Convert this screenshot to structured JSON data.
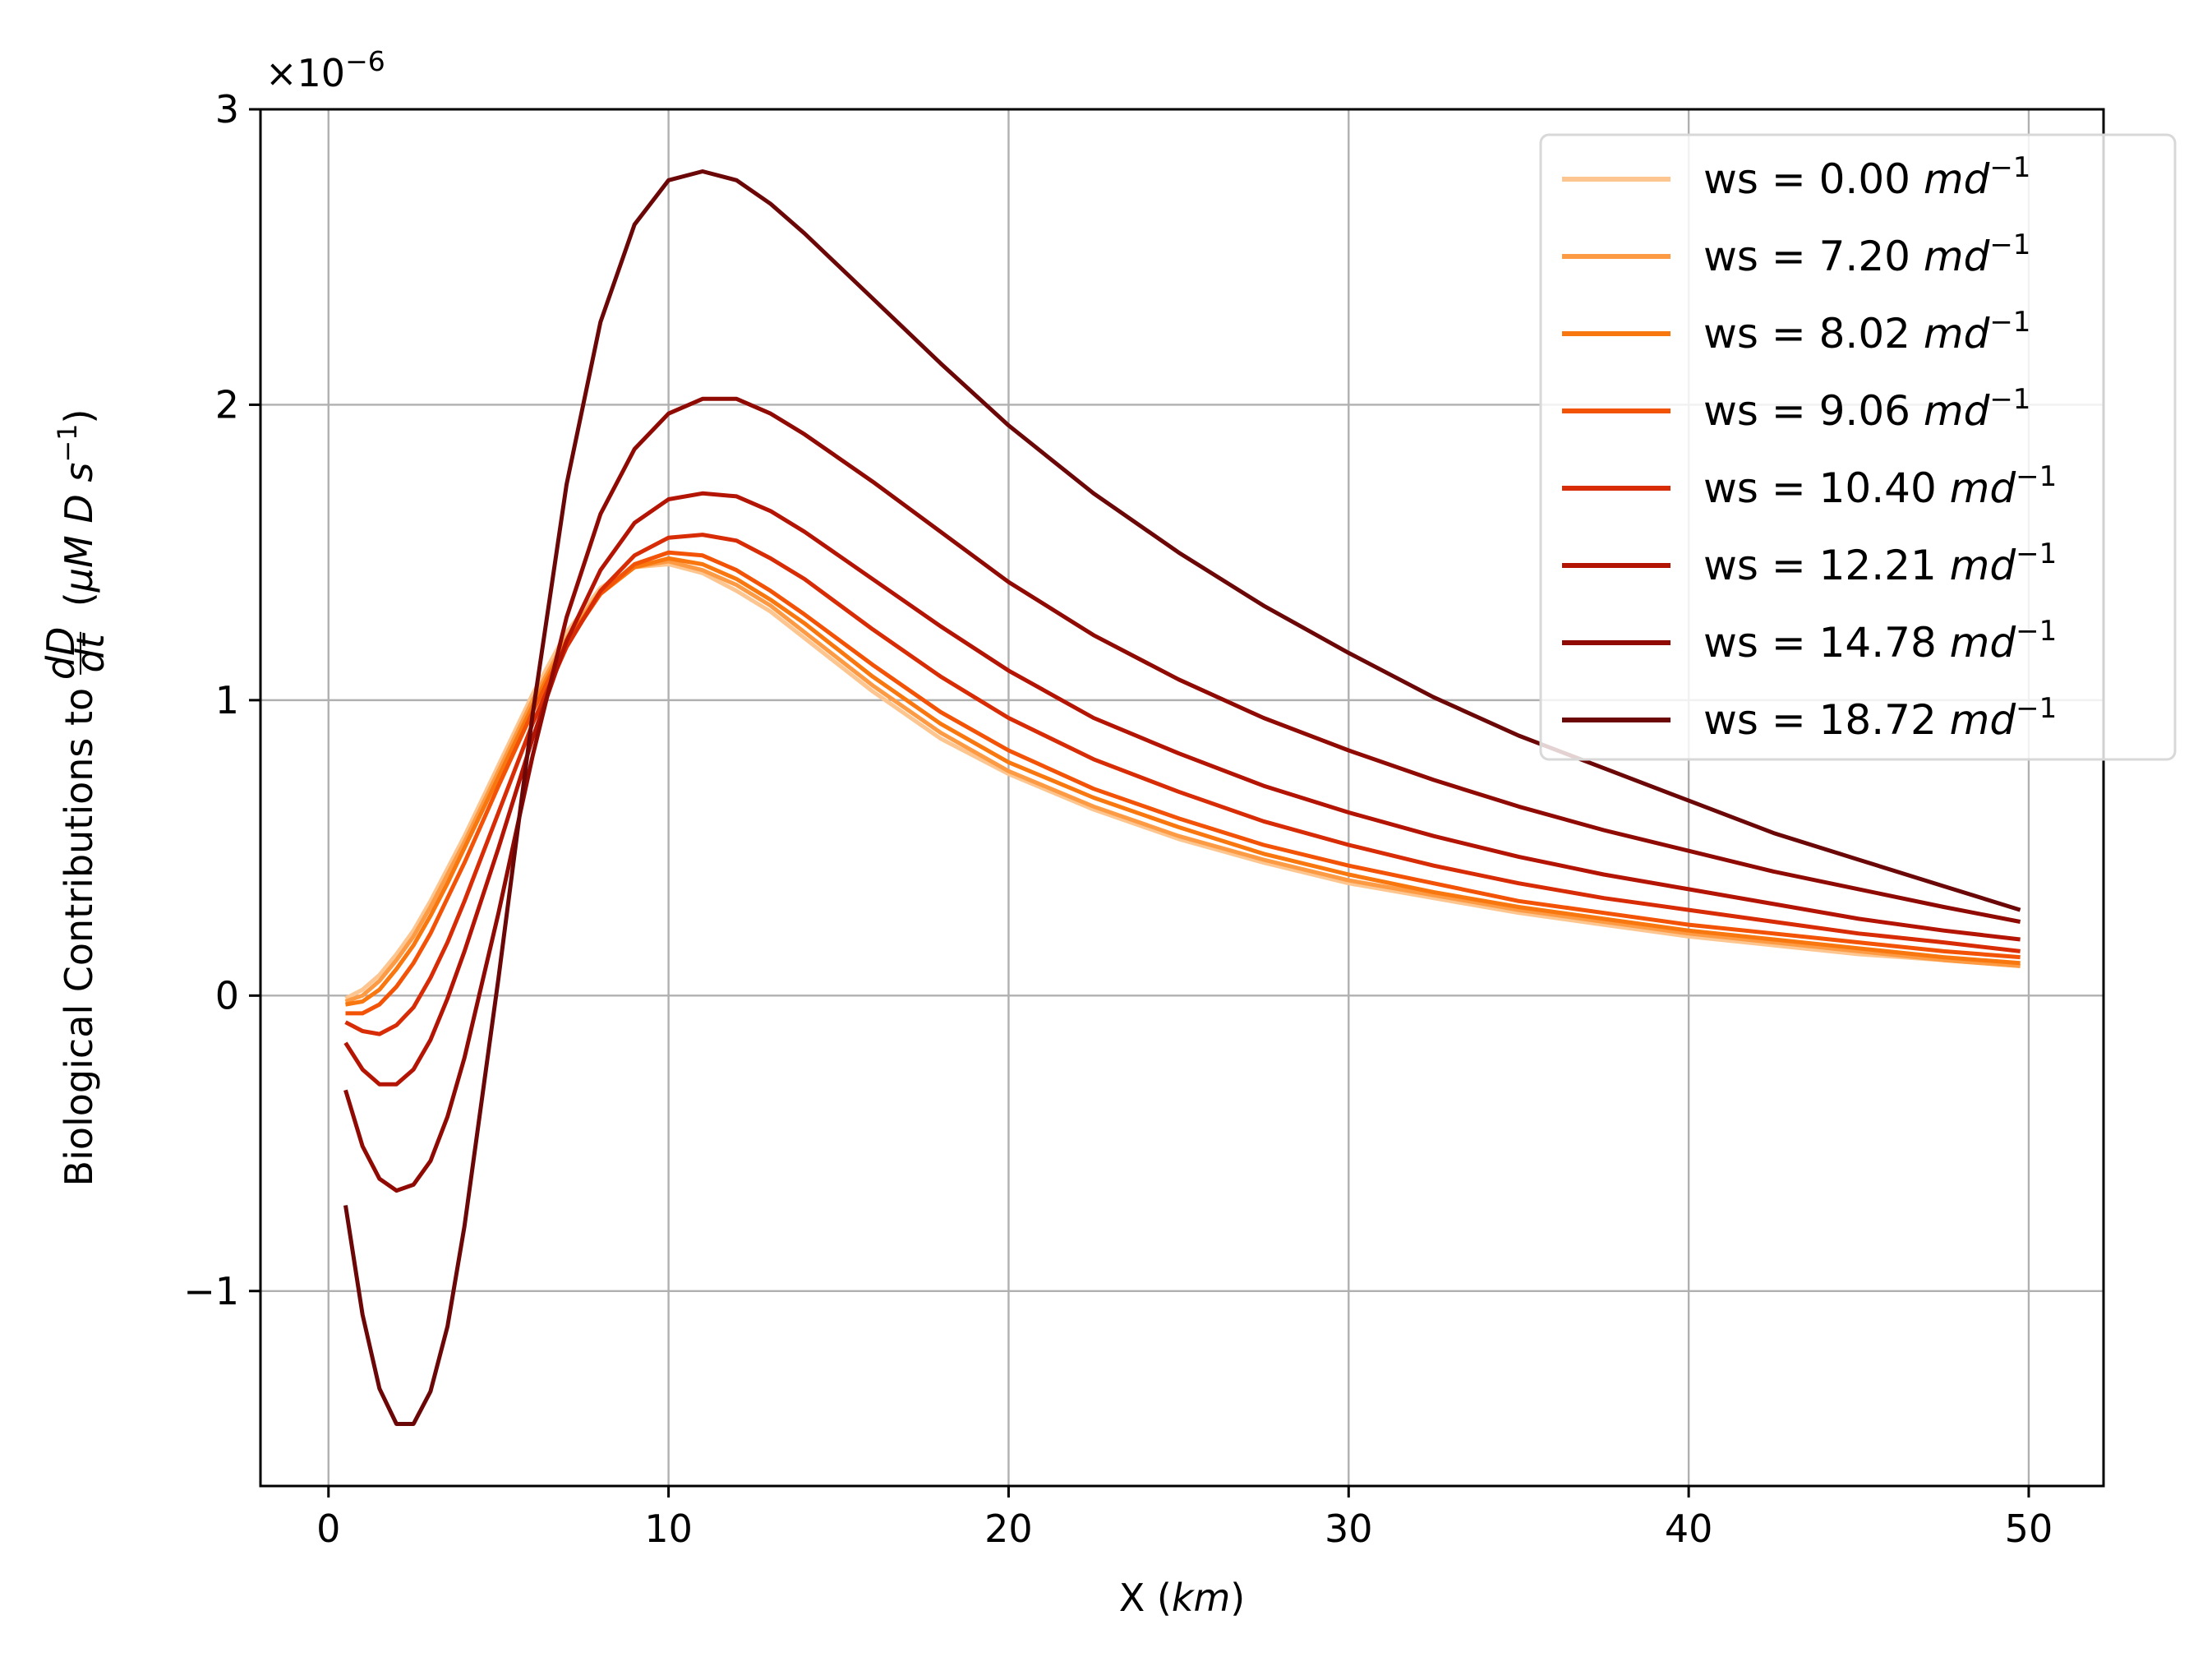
{
  "chart_data": {
    "type": "line",
    "title": "",
    "xlabel": "X",
    "xlabel_unit": "km",
    "ylabel_prefix": "Biological Contributions to",
    "ylabel_frac_num": "dD",
    "ylabel_frac_den": "dt",
    "ylabel_unit": "μM D s",
    "ylabel_unit_exp": "−1",
    "y_offset_text": "×10",
    "y_offset_exp": "−6",
    "xlim": [
      -2,
      52.2
    ],
    "ylim": [
      -1.66,
      3.0
    ],
    "grid": true,
    "legend_position": "top-right",
    "xticks": [
      {
        "value": 0,
        "label": "0"
      },
      {
        "value": 10,
        "label": "10"
      },
      {
        "value": 20,
        "label": "20"
      },
      {
        "value": 30,
        "label": "30"
      },
      {
        "value": 40,
        "label": "40"
      },
      {
        "value": 50,
        "label": "50"
      }
    ],
    "yticks": [
      {
        "value": -1,
        "label": "−1"
      },
      {
        "value": 0,
        "label": "0"
      },
      {
        "value": 1,
        "label": "1"
      },
      {
        "value": 2,
        "label": "2"
      },
      {
        "value": 3,
        "label": "3"
      }
    ],
    "legend_prefix": "ws = ",
    "legend_unit": "md",
    "legend_unit_exp": "−1",
    "x": [
      0.5,
      1.0,
      1.5,
      2.0,
      2.5,
      3.0,
      3.5,
      4.0,
      5.0,
      6.0,
      7.0,
      8.0,
      9.0,
      10.0,
      11.0,
      12.0,
      13.0,
      14.0,
      16.0,
      18.0,
      20.0,
      22.5,
      25.0,
      27.5,
      30.0,
      32.5,
      35.0,
      37.5,
      40.0,
      42.5,
      45.0,
      47.5,
      49.75
    ],
    "series": [
      {
        "name": "0.00",
        "color": "#fdc690",
        "values": [
          -0.01,
          0.02,
          0.07,
          0.14,
          0.22,
          0.32,
          0.43,
          0.54,
          0.78,
          1.02,
          1.23,
          1.38,
          1.45,
          1.46,
          1.43,
          1.37,
          1.3,
          1.21,
          1.03,
          0.87,
          0.75,
          0.63,
          0.53,
          0.45,
          0.38,
          0.33,
          0.28,
          0.24,
          0.2,
          0.17,
          0.14,
          0.12,
          0.1
        ]
      },
      {
        "name": "7.20",
        "color": "#fd9a44",
        "values": [
          -0.02,
          0.0,
          0.05,
          0.12,
          0.2,
          0.3,
          0.41,
          0.52,
          0.76,
          1.0,
          1.21,
          1.37,
          1.45,
          1.47,
          1.44,
          1.39,
          1.32,
          1.23,
          1.05,
          0.89,
          0.76,
          0.64,
          0.54,
          0.46,
          0.39,
          0.34,
          0.29,
          0.25,
          0.21,
          0.18,
          0.15,
          0.12,
          0.1
        ]
      },
      {
        "name": "8.02",
        "color": "#f8770f",
        "values": [
          -0.03,
          -0.02,
          0.02,
          0.09,
          0.17,
          0.27,
          0.38,
          0.5,
          0.74,
          0.98,
          1.2,
          1.36,
          1.45,
          1.48,
          1.46,
          1.41,
          1.34,
          1.26,
          1.08,
          0.92,
          0.79,
          0.67,
          0.57,
          0.48,
          0.41,
          0.35,
          0.3,
          0.26,
          0.22,
          0.19,
          0.16,
          0.13,
          0.11
        ]
      },
      {
        "name": "9.06",
        "color": "#f25307",
        "values": [
          -0.06,
          -0.06,
          -0.03,
          0.03,
          0.11,
          0.21,
          0.33,
          0.45,
          0.71,
          0.96,
          1.19,
          1.36,
          1.46,
          1.5,
          1.49,
          1.44,
          1.37,
          1.29,
          1.12,
          0.96,
          0.83,
          0.7,
          0.6,
          0.51,
          0.44,
          0.38,
          0.32,
          0.28,
          0.24,
          0.21,
          0.18,
          0.15,
          0.13
        ]
      },
      {
        "name": "10.40",
        "color": "#d72c05",
        "values": [
          -0.09,
          -0.12,
          -0.13,
          -0.1,
          -0.04,
          0.06,
          0.18,
          0.32,
          0.62,
          0.92,
          1.18,
          1.37,
          1.49,
          1.55,
          1.56,
          1.54,
          1.48,
          1.41,
          1.24,
          1.08,
          0.94,
          0.8,
          0.69,
          0.59,
          0.51,
          0.44,
          0.38,
          0.33,
          0.29,
          0.25,
          0.21,
          0.18,
          0.15
        ]
      },
      {
        "name": "12.21",
        "color": "#b41403",
        "values": [
          -0.16,
          -0.25,
          -0.3,
          -0.3,
          -0.25,
          -0.15,
          -0.01,
          0.15,
          0.5,
          0.87,
          1.2,
          1.44,
          1.6,
          1.68,
          1.7,
          1.69,
          1.64,
          1.57,
          1.41,
          1.25,
          1.1,
          0.94,
          0.82,
          0.71,
          0.62,
          0.54,
          0.47,
          0.41,
          0.36,
          0.31,
          0.26,
          0.22,
          0.19
        ]
      },
      {
        "name": "14.78",
        "color": "#900a04",
        "values": [
          -0.32,
          -0.51,
          -0.62,
          -0.66,
          -0.64,
          -0.56,
          -0.41,
          -0.21,
          0.28,
          0.81,
          1.28,
          1.63,
          1.85,
          1.97,
          2.02,
          2.02,
          1.97,
          1.9,
          1.74,
          1.57,
          1.4,
          1.22,
          1.07,
          0.94,
          0.83,
          0.73,
          0.64,
          0.56,
          0.49,
          0.42,
          0.36,
          0.3,
          0.25
        ]
      },
      {
        "name": "18.72",
        "color": "#6b0707",
        "values": [
          -0.71,
          -1.08,
          -1.33,
          -1.45,
          -1.45,
          -1.34,
          -1.12,
          -0.78,
          0.06,
          0.95,
          1.73,
          2.28,
          2.61,
          2.76,
          2.79,
          2.76,
          2.68,
          2.58,
          2.36,
          2.14,
          1.93,
          1.7,
          1.5,
          1.32,
          1.16,
          1.01,
          0.88,
          0.77,
          0.66,
          0.55,
          0.46,
          0.37,
          0.29
        ]
      }
    ]
  }
}
